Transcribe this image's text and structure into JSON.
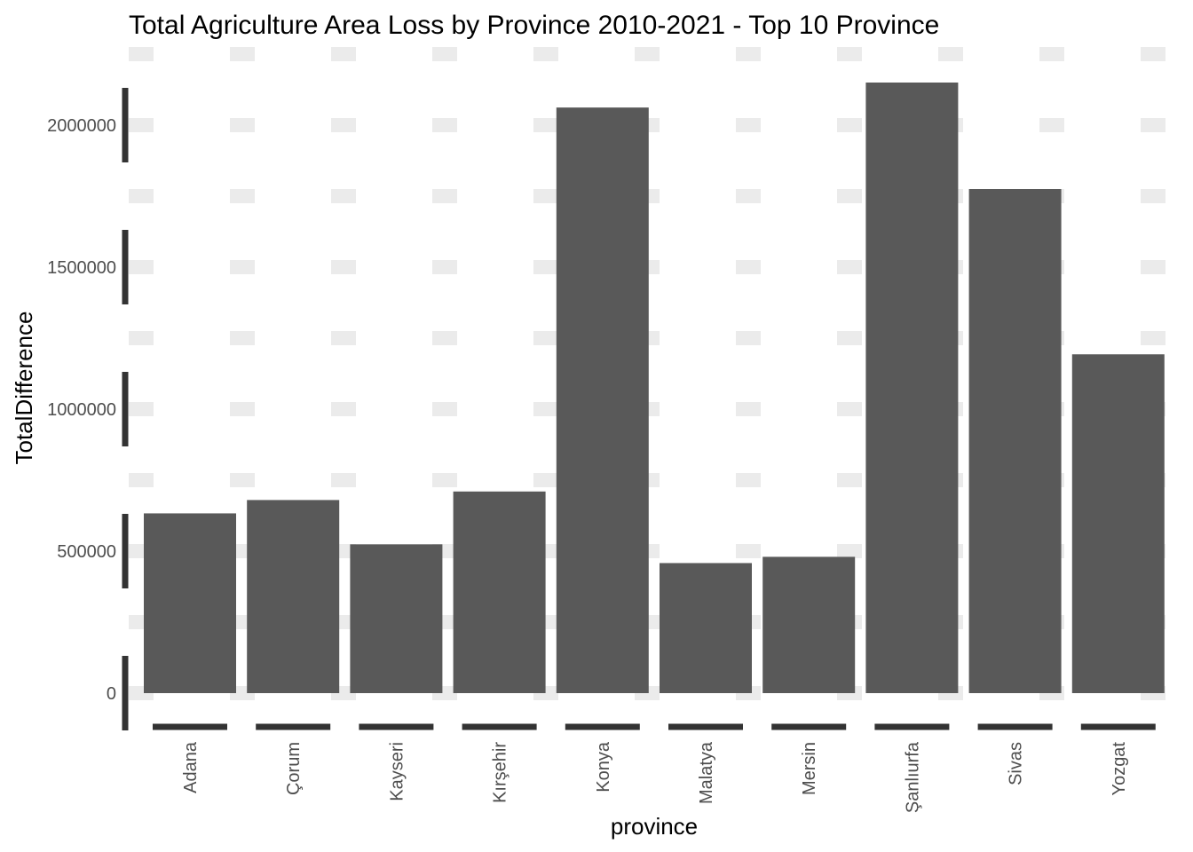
{
  "chart_data": {
    "type": "bar",
    "title": "Total Agriculture Area Loss by Province 2010-2021 - Top 10 Province",
    "xlabel": "province",
    "ylabel": "TotalDifference",
    "categories": [
      "Adana",
      "Çorum",
      "Kayseri",
      "Kırşehir",
      "Konya",
      "Malatya",
      "Mersin",
      "Şanlıurfa",
      "Sivas",
      "Yozgat"
    ],
    "values": [
      633000,
      680000,
      524000,
      710000,
      2062000,
      458000,
      480000,
      2150000,
      1775000,
      1193000
    ],
    "y_ticks": [
      "0",
      "500000",
      "1000000",
      "1500000",
      "2000000"
    ],
    "y_tick_values": [
      0,
      500000,
      1000000,
      1500000,
      2000000
    ],
    "ylim": [
      0,
      2150000
    ],
    "grid": "dashed",
    "legend": "none",
    "colors": {
      "bar": "#595959",
      "grid": "#ebebeb",
      "axis_ticks": "#333333",
      "tick_text": "#4d4d4d"
    }
  }
}
